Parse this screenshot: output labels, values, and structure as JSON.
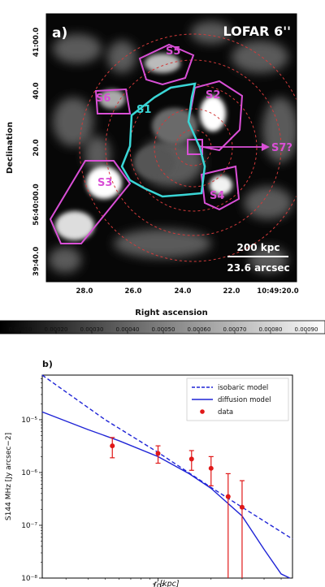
{
  "panel_a": {
    "label": "a)",
    "title": "LOFAR 6''",
    "ylabel": "Declination",
    "xlabel": "Right ascension",
    "dec_ticks": [
      "41:00.0",
      "40.0",
      "20.0",
      "56:40:00.0",
      "39:40.0"
    ],
    "ra_ticks": [
      "28.0",
      "26.0",
      "24.0",
      "22.0",
      "10:49:20.0"
    ],
    "scalebar_kpc": "200 kpc",
    "scalebar_arcsec": "23.6 arcsec",
    "regions": [
      "S1",
      "S2",
      "S3",
      "S4",
      "S5",
      "S6",
      "S7?"
    ],
    "colors": {
      "sources": "#d94fd6",
      "s1": "#3ad6d6",
      "rings": "#d23a3a"
    }
  },
  "colorbar": {
    "ticks": [
      "0.00010",
      "0.00020",
      "0.00030",
      "0.00040",
      "0.00050",
      "0.00060",
      "0.00070",
      "0.00080",
      "0.00090"
    ]
  },
  "chart_data": {
    "type": "line",
    "panel_label": "b)",
    "xlabel": "r [kpc]",
    "ylabel": "S144 MHz [Jy arcsec−2]",
    "xscale": "log",
    "yscale": "log",
    "xlim": [
      22,
      580
    ],
    "ylim": [
      1e-08,
      7e-05
    ],
    "legend_position": "top-right",
    "x_tick_labels": [
      "10²"
    ],
    "y_tick_labels": [
      "10⁻⁵",
      "10⁻⁶",
      "10⁻⁷",
      "10⁻⁸"
    ],
    "series": [
      {
        "name": "isobaric model",
        "style": "dashed",
        "color": "#1f24d6",
        "x": [
          22,
          50,
          100,
          200,
          300,
          400,
          580
        ],
        "y": [
          7e-05,
          1e-05,
          2.4e-06,
          5.2e-07,
          2.2e-07,
          1.2e-07,
          5.5e-08
        ]
      },
      {
        "name": "diffusion model",
        "style": "solid",
        "color": "#1f24d6",
        "x": [
          22,
          40,
          60,
          100,
          150,
          200,
          300,
          400,
          500,
          560
        ],
        "y": [
          1.4e-05,
          6.5e-06,
          4e-06,
          2e-06,
          9.5e-07,
          5e-07,
          1.5e-07,
          3.5e-08,
          1.2e-08,
          1e-08
        ]
      },
      {
        "name": "data",
        "style": "points",
        "color": "#e01818",
        "x": [
          55,
          100,
          155,
          200,
          250,
          300
        ],
        "y": [
          3.2e-06,
          2.3e-06,
          1.8e-06,
          1.2e-06,
          3.5e-07,
          2.2e-07
        ],
        "err_lo": [
          1.9e-06,
          1.5e-06,
          1.1e-06,
          5.6e-07,
          1e-08,
          1e-08
        ],
        "err_hi": [
          4.6e-06,
          3.2e-06,
          2.6e-06,
          2e-06,
          9.5e-07,
          7e-07
        ]
      }
    ]
  }
}
